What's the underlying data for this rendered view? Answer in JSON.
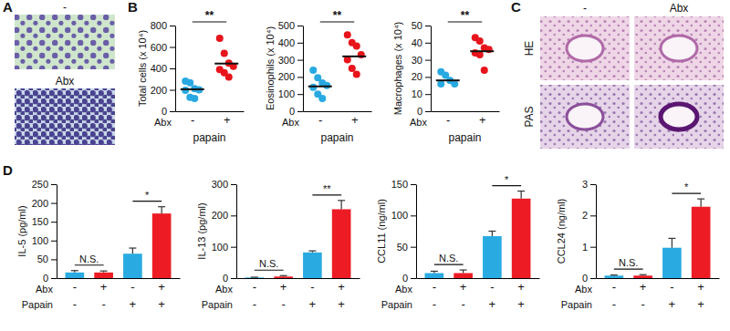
{
  "figure": {
    "panel_labels": [
      "A",
      "B",
      "C",
      "D"
    ],
    "image_labels_A": [
      "-",
      "Abx"
    ],
    "column_labels_C": [
      "-",
      "Abx"
    ],
    "row_labels_C": [
      "HE",
      "PAS"
    ]
  },
  "chart_data": [
    {
      "type": "scatter",
      "y_label": "Total cells (x 10⁴)",
      "x_row_label": "Abx",
      "x_group_label": "papain",
      "categories": [
        "-",
        "+"
      ],
      "colors": [
        "#29a9e1",
        "#e8141b"
      ],
      "points": [
        [
          280,
          265,
          210,
          200,
          195,
          130,
          120
        ],
        [
          680,
          540,
          450,
          420,
          390,
          360,
          320
        ]
      ],
      "means": [
        205,
        445
      ],
      "significance": "**",
      "ylim": [
        0,
        800
      ],
      "yticks": [
        0,
        200,
        400,
        600,
        800
      ]
    },
    {
      "type": "scatter",
      "y_label": "Eosinophils (x 10⁴)",
      "x_row_label": "Abx",
      "x_group_label": "papain",
      "categories": [
        "-",
        "+"
      ],
      "colors": [
        "#29a9e1",
        "#e8141b"
      ],
      "points": [
        [
          240,
          195,
          165,
          150,
          140,
          100,
          75
        ],
        [
          445,
          400,
          380,
          330,
          300,
          250,
          215
        ]
      ],
      "means": [
        145,
        320
      ],
      "significance": "**",
      "ylim": [
        0,
        500
      ],
      "yticks": [
        0,
        100,
        200,
        300,
        400,
        500
      ]
    },
    {
      "type": "scatter",
      "y_label": "Macrophages (x 10⁴)",
      "x_row_label": "Abx",
      "x_group_label": "papain",
      "categories": [
        "-",
        "+"
      ],
      "colors": [
        "#29a9e1",
        "#e8141b"
      ],
      "points": [
        [
          23,
          21,
          18,
          16,
          16
        ],
        [
          43,
          41,
          37,
          36,
          34,
          33,
          24
        ]
      ],
      "means": [
        18,
        35
      ],
      "significance": "**",
      "ylim": [
        0,
        50
      ],
      "yticks": [
        0,
        10,
        20,
        30,
        40,
        50
      ]
    },
    {
      "type": "bar",
      "y_label": "IL-5 (pg/ml)",
      "row_labels": [
        "Abx",
        "Papain"
      ],
      "categories": [
        [
          "-",
          "-"
        ],
        [
          "+",
          "-"
        ],
        [
          "-",
          "+"
        ],
        [
          "+",
          "+"
        ]
      ],
      "colors": [
        "#29abe2",
        "#ed1c24",
        "#29abe2",
        "#ed1c24"
      ],
      "values": [
        15,
        15,
        65,
        172
      ],
      "errors": [
        5,
        4,
        15,
        18
      ],
      "significance": [
        "N.S.",
        "*"
      ],
      "ylim": [
        0,
        250
      ],
      "yticks": [
        0,
        50,
        100,
        150,
        200,
        250
      ]
    },
    {
      "type": "bar",
      "y_label": "IL-13 (pg/ml)",
      "row_labels": [
        "Abx",
        "Papain"
      ],
      "categories": [
        [
          "-",
          "-"
        ],
        [
          "+",
          "-"
        ],
        [
          "-",
          "+"
        ],
        [
          "+",
          "+"
        ]
      ],
      "colors": [
        "#29abe2",
        "#ed1c24",
        "#29abe2",
        "#ed1c24"
      ],
      "values": [
        2,
        5,
        82,
        220
      ],
      "errors": [
        1,
        3,
        5,
        28
      ],
      "significance": [
        "N.S.",
        "**"
      ],
      "ylim": [
        0,
        300
      ],
      "yticks": [
        0,
        100,
        200,
        300
      ]
    },
    {
      "type": "bar",
      "y_label": "CCL11 (ng/ml)",
      "row_labels": [
        "Abx",
        "Papain"
      ],
      "categories": [
        [
          "-",
          "-"
        ],
        [
          "+",
          "-"
        ],
        [
          "-",
          "+"
        ],
        [
          "+",
          "+"
        ]
      ],
      "colors": [
        "#29abe2",
        "#ed1c24",
        "#29abe2",
        "#ed1c24"
      ],
      "values": [
        8,
        8,
        67,
        127
      ],
      "errors": [
        3,
        5,
        8,
        12
      ],
      "significance": [
        "N.S.",
        "*"
      ],
      "ylim": [
        0,
        150
      ],
      "yticks": [
        0,
        50,
        100,
        150
      ]
    },
    {
      "type": "bar",
      "y_label": "CCL24 (ng/ml)",
      "row_labels": [
        "Abx",
        "Papain"
      ],
      "categories": [
        [
          "-",
          "-"
        ],
        [
          "+",
          "-"
        ],
        [
          "-",
          "+"
        ],
        [
          "+",
          "+"
        ]
      ],
      "colors": [
        "#29abe2",
        "#ed1c24",
        "#29abe2",
        "#ed1c24"
      ],
      "values": [
        0.08,
        0.08,
        0.97,
        2.28
      ],
      "errors": [
        0.02,
        0.03,
        0.3,
        0.25
      ],
      "significance": [
        "N.S.",
        "*"
      ],
      "ylim": [
        0,
        3
      ],
      "yticks": [
        0,
        1,
        2,
        3
      ]
    }
  ]
}
